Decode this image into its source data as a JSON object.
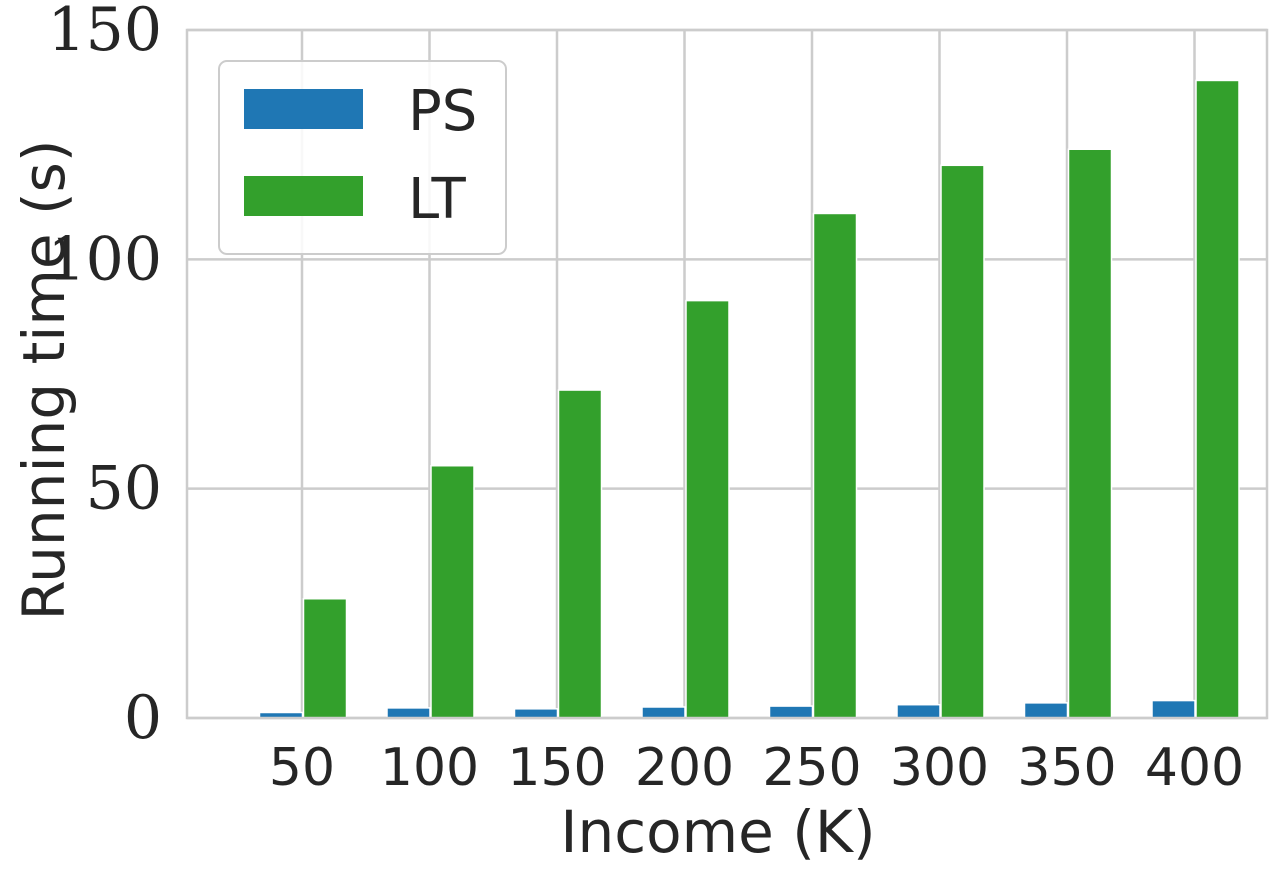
{
  "chart_data": {
    "type": "bar",
    "title": "",
    "xlabel": "Income (K)",
    "ylabel": "Running time (s)",
    "categories": [
      "50",
      "100",
      "150",
      "200",
      "250",
      "300",
      "350",
      "400"
    ],
    "series": [
      {
        "name": "PS",
        "color": "#1f77b4",
        "values": [
          1.2,
          2.2,
          2.0,
          2.4,
          2.6,
          2.9,
          3.3,
          3.8
        ]
      },
      {
        "name": "LT",
        "color": "#33a02c",
        "values": [
          26,
          55,
          71.5,
          91,
          110,
          120.5,
          124,
          139
        ]
      }
    ],
    "ylim": [
      0,
      150
    ],
    "yticks": [
      "0",
      "50",
      "100",
      "150"
    ],
    "grid": true,
    "legend_position": "top-left"
  }
}
